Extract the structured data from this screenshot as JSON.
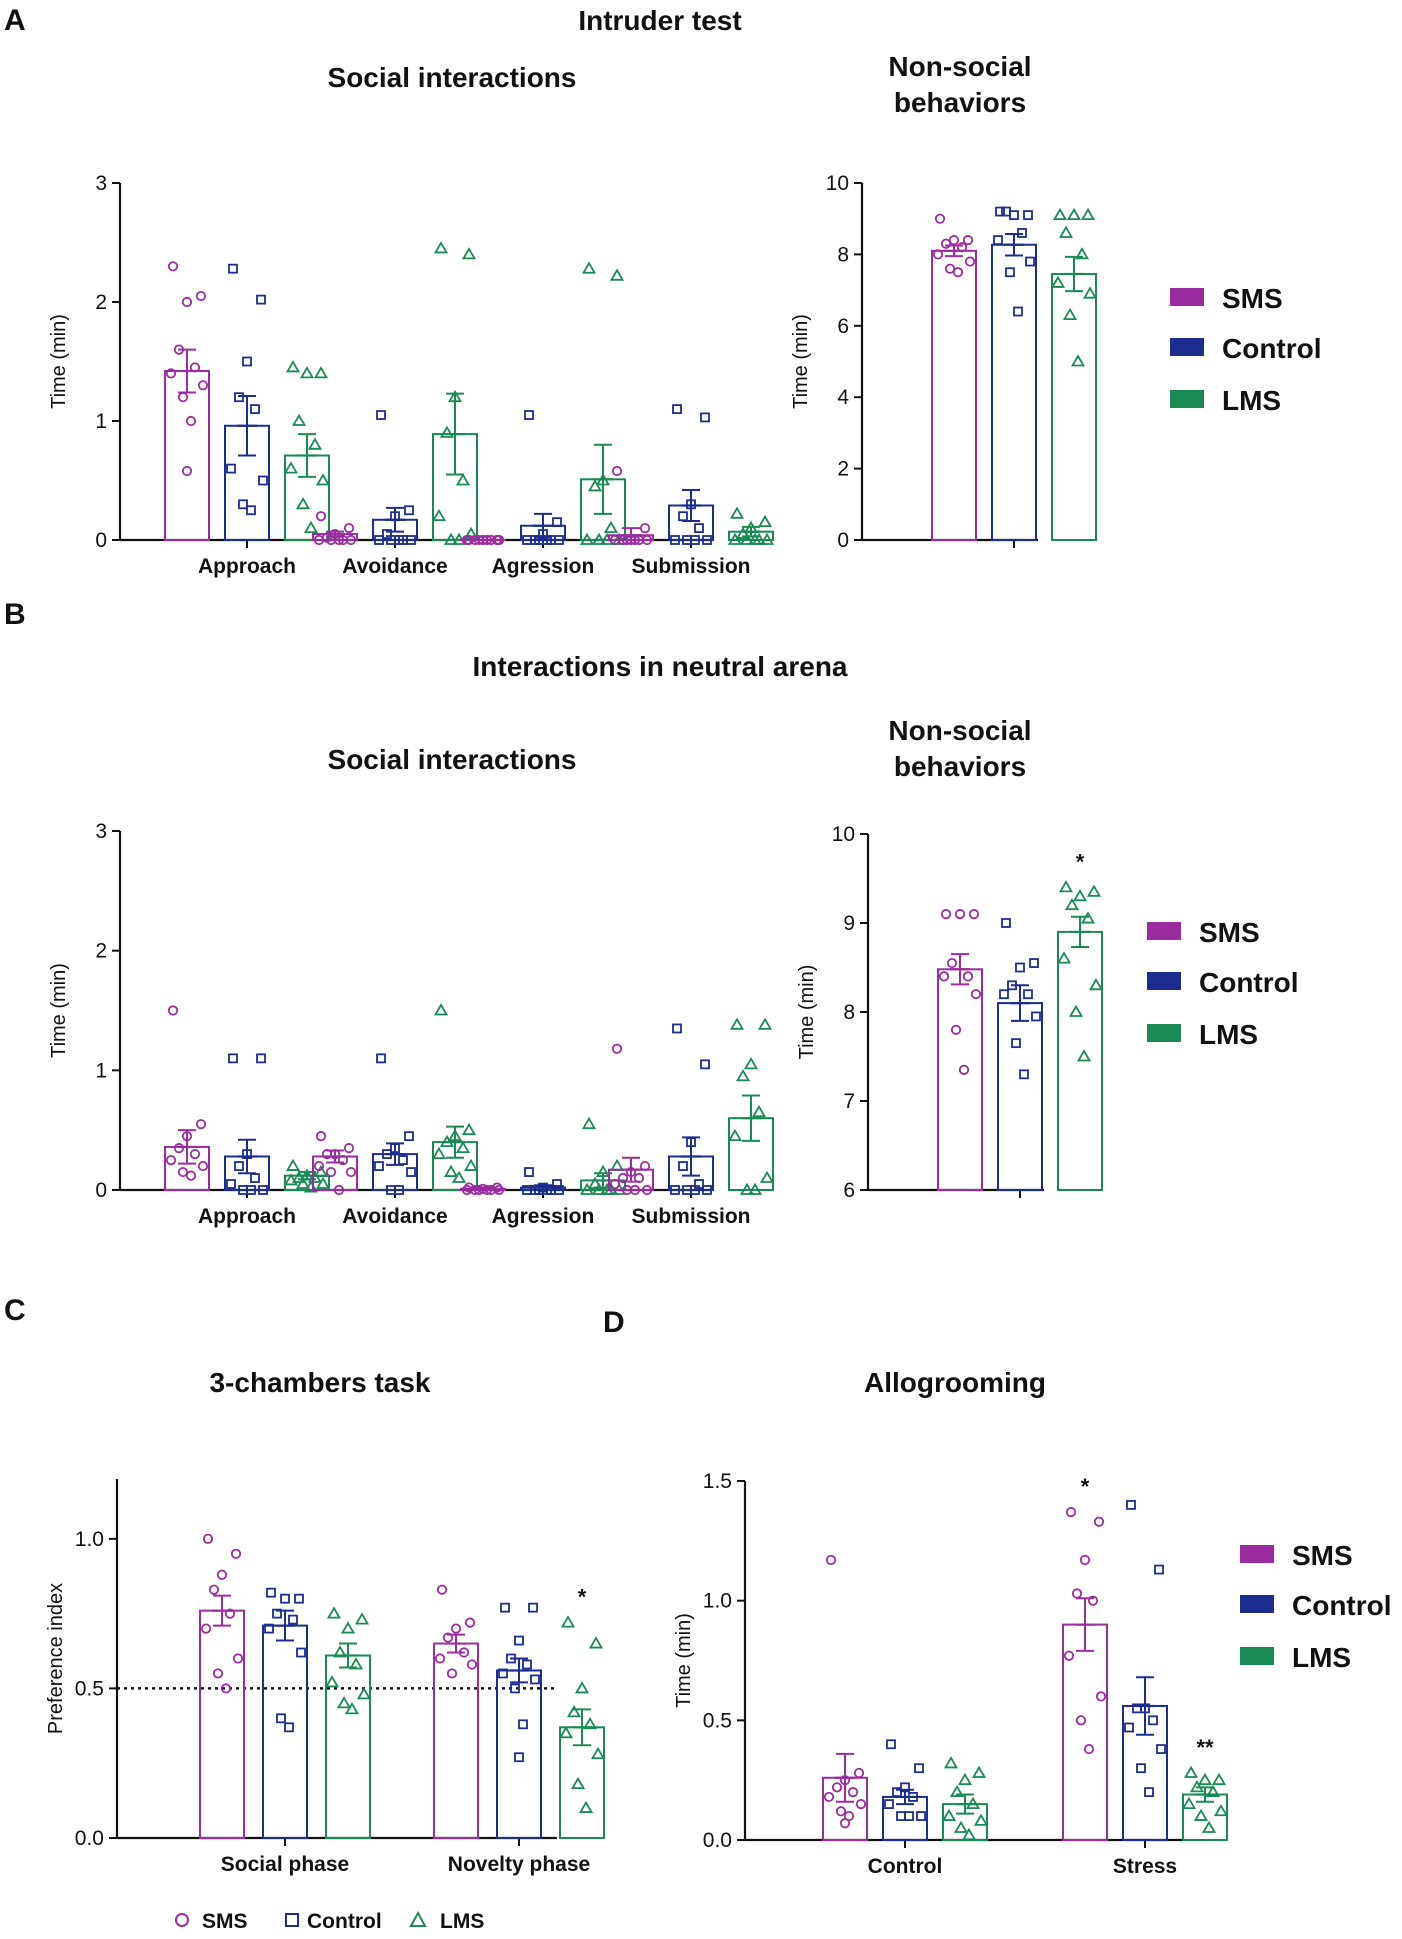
{
  "colors": {
    "SMS": "#9b2c9f",
    "Control": "#1b2d8f",
    "LMS": "#1a8a55"
  },
  "panel_labels": {
    "A": "A",
    "B": "B",
    "C": "C",
    "D": "D"
  },
  "titles": {
    "A_main": "Intruder test",
    "A_social": "Social interactions",
    "A_nonsocial_1": "Non-social",
    "A_nonsocial_2": "behaviors",
    "B_main": "Interactions in neutral arena",
    "B_social": "Social interactions",
    "B_nonsocial_1": "Non-social",
    "B_nonsocial_2": "behaviors",
    "C": "3-chambers task",
    "D": "Allogrooming"
  },
  "legend": {
    "items": [
      "SMS",
      "Control",
      "LMS"
    ]
  },
  "bottom_legend": {
    "items": [
      "SMS",
      "Control",
      "LMS"
    ]
  },
  "chart_data": [
    {
      "id": "A_social",
      "type": "bar",
      "title": "Social interactions",
      "ylabel": "Time (min)",
      "ylim": [
        0,
        3
      ],
      "yticks": [
        "0",
        "1",
        "2",
        "3"
      ],
      "categories": [
        "Approach",
        "Avoidance",
        "Agression",
        "Submission"
      ],
      "series": [
        {
          "name": "SMS",
          "values": [
            1.42,
            0.05,
            0.0,
            0.04
          ],
          "sem": [
            0.18,
            0.02,
            0.0,
            0.06
          ]
        },
        {
          "name": "Control",
          "values": [
            0.96,
            0.17,
            0.12,
            0.29
          ],
          "sem": [
            0.25,
            0.1,
            0.1,
            0.13
          ]
        },
        {
          "name": "LMS",
          "values": [
            0.71,
            0.89,
            0.51,
            0.07
          ],
          "sem": [
            0.18,
            0.34,
            0.29,
            0.04
          ]
        }
      ],
      "points": [
        [
          [
            2.3,
            2.05,
            2.0,
            1.6,
            1.45,
            1.4,
            1.3,
            1.2,
            1.0,
            0.58
          ],
          [
            0.2,
            0.1,
            0.05,
            0.02,
            0.0,
            0.0,
            0.0,
            0.0,
            0.0
          ],
          [
            0.0,
            0.0,
            0.0,
            0.0,
            0.0,
            0.0,
            0.0,
            0.0,
            0.0
          ],
          [
            0.58,
            0.1,
            0.0,
            0.0,
            0.0,
            0.0,
            0.0,
            0.0,
            0.0
          ]
        ],
        [
          [
            2.28,
            2.02,
            1.5,
            1.2,
            1.1,
            0.6,
            0.5,
            0.3,
            0.25
          ],
          [
            1.05,
            0.25,
            0.2,
            0.05,
            0.0,
            0.0,
            0.0,
            0.0,
            0.0
          ],
          [
            1.05,
            0.15,
            0.05,
            0.0,
            0.0,
            0.0,
            0.0,
            0.0,
            0.0
          ],
          [
            1.1,
            1.03,
            0.3,
            0.2,
            0.1,
            0.0,
            0.0,
            0.0,
            0.0
          ]
        ],
        [
          [
            1.45,
            1.4,
            1.4,
            1.0,
            0.8,
            0.6,
            0.5,
            0.3,
            0.1
          ],
          [
            2.45,
            2.4,
            1.2,
            0.9,
            0.5,
            0.2,
            0.05,
            0.0,
            0.0
          ],
          [
            2.28,
            2.22,
            0.5,
            0.45,
            0.1,
            0.0,
            0.0,
            0.0,
            0.0
          ],
          [
            0.22,
            0.15,
            0.1,
            0.05,
            0.0,
            0.0,
            0.0,
            0.0,
            0.0
          ]
        ]
      ]
    },
    {
      "id": "A_nonsocial",
      "type": "bar",
      "title": "Non-social behaviors",
      "ylabel": "Time (min)",
      "ylim": [
        0,
        10
      ],
      "yticks": [
        "0",
        "2",
        "4",
        "6",
        "8",
        "10"
      ],
      "categories": [
        ""
      ],
      "series": [
        {
          "name": "SMS",
          "values": [
            8.1
          ],
          "sem": [
            0.15
          ]
        },
        {
          "name": "Control",
          "values": [
            8.27
          ],
          "sem": [
            0.3
          ]
        },
        {
          "name": "LMS",
          "values": [
            7.45
          ],
          "sem": [
            0.48
          ]
        }
      ],
      "points": [
        [
          [
            9.0,
            8.4,
            8.4,
            8.3,
            8.2,
            8.0,
            7.8,
            7.6,
            7.5
          ]
        ],
        [
          [
            9.2,
            9.1,
            9.1,
            9.2,
            8.6,
            8.4,
            7.8,
            7.5,
            6.4
          ]
        ],
        [
          [
            9.1,
            9.1,
            9.1,
            8.6,
            8.0,
            7.2,
            6.9,
            6.3,
            5.0
          ]
        ]
      ]
    },
    {
      "id": "B_social",
      "type": "bar",
      "title": "Social interactions",
      "ylabel": "Time (min)",
      "ylim": [
        0,
        3
      ],
      "yticks": [
        "0",
        "1",
        "2",
        "3"
      ],
      "categories": [
        "Approach",
        "Avoidance",
        "Agression",
        "Submission"
      ],
      "series": [
        {
          "name": "SMS",
          "values": [
            0.36,
            0.28,
            0.01,
            0.17
          ],
          "sem": [
            0.14,
            0.05,
            0.01,
            0.1
          ]
        },
        {
          "name": "Control",
          "values": [
            0.28,
            0.3,
            0.02,
            0.28
          ],
          "sem": [
            0.14,
            0.09,
            0.02,
            0.16
          ]
        },
        {
          "name": "LMS",
          "values": [
            0.12,
            0.4,
            0.08,
            0.6
          ],
          "sem": [
            0.03,
            0.13,
            0.06,
            0.19
          ]
        }
      ],
      "points": [
        [
          [
            1.5,
            0.55,
            0.45,
            0.35,
            0.3,
            0.25,
            0.2,
            0.15,
            0.12
          ],
          [
            0.45,
            0.35,
            0.3,
            0.3,
            0.25,
            0.2,
            0.15,
            0.15,
            0.0
          ],
          [
            0.02,
            0.02,
            0.01,
            0.0,
            0.0,
            0.0,
            0.0,
            0.0,
            0.0
          ],
          [
            1.18,
            0.2,
            0.15,
            0.1,
            0.1,
            0.05,
            0.0,
            0.0,
            0.0
          ]
        ],
        [
          [
            1.1,
            1.1,
            0.3,
            0.2,
            0.1,
            0.05,
            0.0,
            0.0,
            0.0
          ],
          [
            1.1,
            0.45,
            0.35,
            0.3,
            0.25,
            0.2,
            0.15,
            0.0,
            0.0
          ],
          [
            0.15,
            0.05,
            0.02,
            0.0,
            0.0,
            0.0,
            0.0,
            0.0,
            0.0
          ],
          [
            1.35,
            1.05,
            0.4,
            0.2,
            0.05,
            0.0,
            0.0,
            0.0,
            0.0
          ]
        ],
        [
          [
            0.2,
            0.15,
            0.12,
            0.1,
            0.1,
            0.08,
            0.05,
            0.05,
            0.02
          ],
          [
            1.5,
            0.5,
            0.45,
            0.4,
            0.35,
            0.3,
            0.2,
            0.15,
            0.1
          ],
          [
            0.55,
            0.2,
            0.15,
            0.05,
            0.0,
            0.0,
            0.0,
            0.0,
            0.0
          ],
          [
            1.38,
            1.38,
            1.05,
            0.95,
            0.65,
            0.45,
            0.1,
            0.0,
            0.0
          ]
        ]
      ]
    },
    {
      "id": "B_nonsocial",
      "type": "bar",
      "title": "Non-social behaviors",
      "ylabel": "Time (min)",
      "ylim": [
        6,
        10
      ],
      "yticks": [
        "6",
        "7",
        "8",
        "9",
        "10"
      ],
      "categories": [
        ""
      ],
      "series": [
        {
          "name": "SMS",
          "values": [
            8.48
          ],
          "sem": [
            0.17
          ]
        },
        {
          "name": "Control",
          "values": [
            8.1
          ],
          "sem": [
            0.2
          ]
        },
        {
          "name": "LMS",
          "values": [
            8.9
          ],
          "sem": [
            0.17
          ]
        }
      ],
      "points": [
        [
          [
            9.1,
            9.1,
            9.1,
            8.55,
            8.4,
            8.4,
            8.2,
            7.8,
            7.35
          ]
        ],
        [
          [
            9.0,
            8.55,
            8.5,
            8.3,
            8.2,
            8.2,
            7.95,
            7.65,
            7.3
          ]
        ],
        [
          [
            9.4,
            9.35,
            9.3,
            9.2,
            9.05,
            8.6,
            8.3,
            8.0,
            7.5
          ]
        ]
      ],
      "annotations": [
        {
          "category": 0,
          "series": "LMS",
          "text": "*"
        }
      ]
    },
    {
      "id": "C",
      "type": "bar",
      "title": "3-chambers task",
      "ylabel": "Preference index",
      "ylim": [
        0,
        1.2
      ],
      "yticks": [
        "0.0",
        "0.5",
        "1.0"
      ],
      "categories": [
        "Social phase",
        "Novelty phase"
      ],
      "reference_line": 0.5,
      "series": [
        {
          "name": "SMS",
          "values": [
            0.76,
            0.65
          ],
          "sem": [
            0.05,
            0.03
          ]
        },
        {
          "name": "Control",
          "values": [
            0.71,
            0.56
          ],
          "sem": [
            0.05,
            0.04
          ]
        },
        {
          "name": "LMS",
          "values": [
            0.61,
            0.37
          ],
          "sem": [
            0.04,
            0.06
          ]
        }
      ],
      "points": [
        [
          [
            1.0,
            0.95,
            0.88,
            0.83,
            0.75,
            0.7,
            0.6,
            0.55,
            0.5
          ],
          [
            0.83,
            0.72,
            0.7,
            0.67,
            0.62,
            0.6,
            0.58,
            0.55
          ]
        ],
        [
          [
            0.82,
            0.8,
            0.8,
            0.75,
            0.73,
            0.7,
            0.62,
            0.4,
            0.37
          ],
          [
            0.77,
            0.77,
            0.66,
            0.6,
            0.58,
            0.55,
            0.53,
            0.5,
            0.38,
            0.27
          ]
        ],
        [
          [
            0.75,
            0.73,
            0.7,
            0.62,
            0.58,
            0.52,
            0.48,
            0.45,
            0.43
          ],
          [
            0.72,
            0.65,
            0.5,
            0.42,
            0.38,
            0.35,
            0.28,
            0.18,
            0.1
          ]
        ]
      ],
      "annotations": [
        {
          "category": 1,
          "series": "LMS",
          "text": "*"
        }
      ]
    },
    {
      "id": "D",
      "type": "bar",
      "title": "Allogrooming",
      "ylabel": "Time (min)",
      "ylim": [
        0,
        1.5
      ],
      "yticks": [
        "0.0",
        "0.5",
        "1.0",
        "1.5"
      ],
      "categories": [
        "Control",
        "Stress"
      ],
      "series": [
        {
          "name": "SMS",
          "values": [
            0.26,
            0.9
          ],
          "sem": [
            0.1,
            0.11
          ]
        },
        {
          "name": "Control",
          "values": [
            0.18,
            0.56
          ],
          "sem": [
            0.03,
            0.12
          ]
        },
        {
          "name": "LMS",
          "values": [
            0.15,
            0.19
          ],
          "sem": [
            0.04,
            0.03
          ]
        }
      ],
      "points": [
        [
          [
            1.17,
            0.28,
            0.25,
            0.22,
            0.2,
            0.18,
            0.15,
            0.12,
            0.1,
            0.07
          ],
          [
            1.37,
            1.33,
            1.17,
            1.03,
            1.0,
            0.77,
            0.6,
            0.5,
            0.38
          ]
        ],
        [
          [
            0.4,
            0.3,
            0.22,
            0.2,
            0.18,
            0.15,
            0.1,
            0.1,
            0.1
          ],
          [
            1.4,
            1.13,
            0.55,
            0.55,
            0.5,
            0.47,
            0.38,
            0.3,
            0.2
          ]
        ],
        [
          [
            0.32,
            0.28,
            0.25,
            0.2,
            0.15,
            0.1,
            0.08,
            0.05,
            0.02
          ],
          [
            0.28,
            0.25,
            0.25,
            0.22,
            0.2,
            0.15,
            0.12,
            0.1,
            0.05
          ]
        ]
      ],
      "annotations": [
        {
          "category": 1,
          "series": "SMS",
          "text": "*"
        },
        {
          "category": 1,
          "series": "LMS",
          "text": "**"
        }
      ]
    }
  ]
}
